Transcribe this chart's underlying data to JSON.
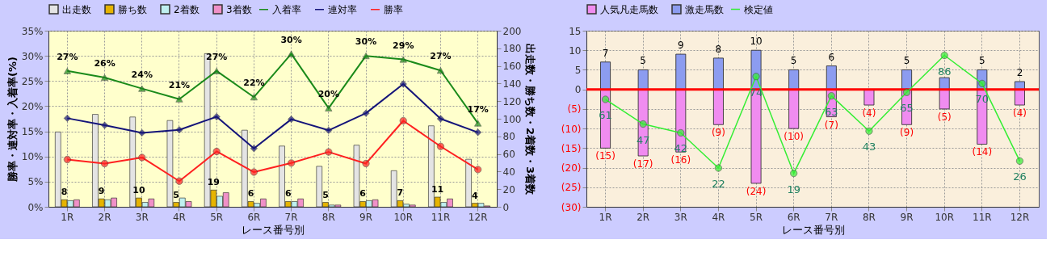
{
  "chart_data": [
    {
      "type": "bar",
      "legend": "top",
      "grid": true,
      "categories": [
        "1R",
        "2R",
        "3R",
        "4R",
        "5R",
        "6R",
        "7R",
        "8R",
        "9R",
        "10R",
        "11R",
        "12R"
      ],
      "xlabel": "レース番号別",
      "ylabel": "勝率・連対率・入着率(%)",
      "y2label": "出走数・勝ち数・2着数・3着数",
      "ylim": [
        0,
        35
      ],
      "yticks": [
        {
          "value": 0,
          "label": "0%"
        },
        {
          "value": 5,
          "label": "5%"
        },
        {
          "value": 10,
          "label": "10%"
        },
        {
          "value": 15,
          "label": "15%"
        },
        {
          "value": 20,
          "label": "20%"
        },
        {
          "value": 25,
          "label": "25%"
        },
        {
          "value": 30,
          "label": "30%"
        },
        {
          "value": 35,
          "label": "35%"
        }
      ],
      "y2lim": [
        0,
        200
      ],
      "y2ticks": [
        0,
        20,
        40,
        60,
        80,
        100,
        120,
        140,
        160,
        180,
        200
      ],
      "series": [
        {
          "name": "出走数",
          "axis": "y2",
          "color": "#e4e4e4",
          "values": [
            85,
            105,
            102,
            98,
            174,
            87,
            69,
            46,
            70,
            41,
            92,
            54
          ]
        },
        {
          "name": "勝ち数",
          "axis": "y2",
          "color": "#e6b400",
          "values": [
            8,
            9,
            10,
            5,
            19,
            6,
            6,
            5,
            6,
            7,
            11,
            4
          ],
          "value_labels": [
            "8",
            "9",
            "10",
            "5",
            "19",
            "6",
            "6",
            "5",
            "6",
            "7",
            "11",
            "4"
          ]
        },
        {
          "name": "2着数",
          "axis": "y2",
          "color": "#bff0f0",
          "values": [
            7,
            8,
            5,
            10,
            12,
            4,
            6,
            2,
            7,
            3,
            5,
            4
          ]
        },
        {
          "name": "3着数",
          "axis": "y2",
          "color": "#f090c8",
          "values": [
            8,
            10,
            9,
            6,
            16,
            9,
            9,
            2,
            8,
            2,
            9,
            1
          ]
        },
        {
          "name": "入着率",
          "type": "line",
          "axis": "y",
          "marker": "triangle",
          "color": "#1a8a1a",
          "values": [
            27,
            25.7,
            23.5,
            21.4,
            27,
            21.8,
            30.4,
            19.6,
            30,
            29.3,
            27.1,
            16.6
          ],
          "value_labels": [
            "27%",
            "26%",
            "24%",
            "21%",
            "27%",
            "22%",
            "30%",
            "20%",
            "30%",
            "29%",
            "27%",
            "17%"
          ]
        },
        {
          "name": "連対率",
          "type": "line",
          "axis": "y",
          "marker": "diamond",
          "color": "#14147a",
          "values": [
            17.6,
            16.2,
            14.7,
            15.3,
            17.9,
            11.6,
            17.4,
            15.2,
            18.6,
            24.4,
            17.5,
            14.8
          ]
        },
        {
          "name": "勝率",
          "type": "line",
          "axis": "y",
          "marker": "circle",
          "color": "#ff2020",
          "values": [
            9.4,
            8.6,
            9.8,
            5.1,
            11,
            6.9,
            8.7,
            10.9,
            8.6,
            17.1,
            12,
            7.4
          ]
        }
      ]
    },
    {
      "type": "bar",
      "stacked": true,
      "legend": "top",
      "grid": true,
      "categories": [
        "1R",
        "2R",
        "3R",
        "4R",
        "5R",
        "6R",
        "7R",
        "8R",
        "9R",
        "10R",
        "11R",
        "12R"
      ],
      "xlabel": "レース番号別",
      "ylim": [
        -30,
        15
      ],
      "yticks": [
        {
          "value": -30,
          "label": "(30)"
        },
        {
          "value": -25,
          "label": "(25)"
        },
        {
          "value": -20,
          "label": "(20)"
        },
        {
          "value": -15,
          "label": "(15)"
        },
        {
          "value": -10,
          "label": "(10)"
        },
        {
          "value": -5,
          "label": "(5)"
        },
        0,
        5,
        10,
        15
      ],
      "y2lim": [
        0,
        100
      ],
      "ref_lines": [
        {
          "axis": "y",
          "value": 0,
          "color": "#ff0000"
        }
      ],
      "series": [
        {
          "name": "人気凡走馬数",
          "axis": "y",
          "color": "#f08cf0",
          "values": [
            -15,
            -17,
            -16,
            -9,
            -24,
            -10,
            -7,
            -4,
            -9,
            -5,
            -14,
            -4
          ],
          "value_labels": [
            "(15)",
            "(17)",
            "(16)",
            "(9)",
            "(24)",
            "(10)",
            "(7)",
            "(4)",
            "(9)",
            "(5)",
            "(14)",
            "(4)"
          ]
        },
        {
          "name": "激走馬数",
          "axis": "y",
          "color": "#8c9cf0",
          "values": [
            7,
            5,
            9,
            8,
            10,
            5,
            6,
            0,
            5,
            3,
            5,
            2
          ],
          "value_labels": [
            "7",
            "5",
            "9",
            "8",
            "10",
            "5",
            "6",
            null,
            "5",
            null,
            "5",
            "2"
          ]
        },
        {
          "name": "検定値",
          "type": "line",
          "axis": "y2",
          "marker": "circle",
          "color": "#33ee33",
          "values": [
            61,
            47,
            42,
            22,
            74,
            19,
            63,
            43,
            65,
            86,
            70,
            26
          ],
          "value_labels": [
            "61",
            "47",
            "42",
            "22",
            "74",
            "19",
            "63",
            "43",
            "65",
            "86",
            "70",
            "26"
          ]
        }
      ]
    }
  ]
}
